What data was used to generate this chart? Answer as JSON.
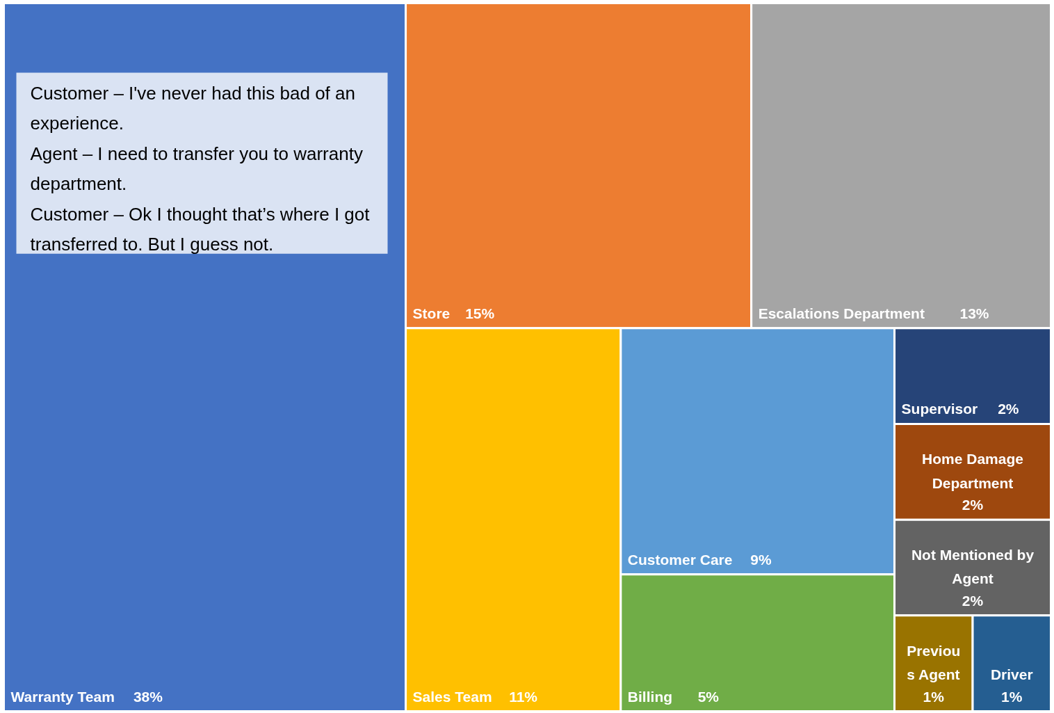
{
  "chart_data": {
    "type": "other",
    "categories": [
      "Warranty Team",
      "Store",
      "Escalations Department",
      "Sales Team",
      "Customer Care",
      "Billing",
      "Supervisor",
      "Home Damage Department",
      "Not Mentioned by Agent",
      "Previous Agent",
      "Driver"
    ],
    "values": [
      38,
      15,
      13,
      11,
      9,
      5,
      2,
      2,
      2,
      1,
      1
    ],
    "colors": [
      "#4472c4",
      "#ed7d31",
      "#a5a5a5",
      "#ffc000",
      "#5b9bd5",
      "#70ad47",
      "#264478",
      "#9e480e",
      "#636363",
      "#997300",
      "#255e91"
    ],
    "value_labels": [
      "38%",
      "15%",
      "13%",
      "11%",
      "9%",
      "5%",
      "2%",
      "2%",
      "2%",
      "1%",
      "1%"
    ],
    "annotations": [
      "Customer – I've never had this bad of an experience.",
      "Agent – I need to transfer you to warranty department.",
      "Customer – Ok I thought that’s where I got transferred to. But I guess not."
    ]
  }
}
